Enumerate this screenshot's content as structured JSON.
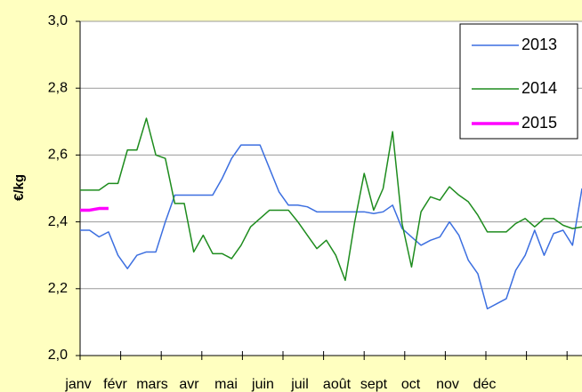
{
  "chart_data": {
    "type": "line",
    "y_label": "€/kg",
    "categories": [
      "janv",
      "févr",
      "mars",
      "avr",
      "mai",
      "juin",
      "juil",
      "août",
      "sept",
      "oct",
      "nov",
      "déc"
    ],
    "x": [
      0,
      1,
      2,
      3,
      4,
      5,
      6,
      7,
      8,
      9,
      10,
      11,
      12,
      13,
      14,
      15,
      16,
      17,
      18,
      19,
      20,
      21,
      22,
      23,
      24,
      25,
      26,
      27,
      28,
      29,
      30,
      31,
      32,
      33,
      34,
      35,
      36,
      37,
      38,
      39,
      40,
      41,
      42,
      43,
      44,
      45,
      46,
      47,
      48,
      49,
      50,
      51,
      52,
      53
    ],
    "xlim": [
      0,
      53
    ],
    "ylim": [
      2.0,
      3.0
    ],
    "yticks": [
      {
        "value": 2.0,
        "label": "2,0"
      },
      {
        "value": 2.2,
        "label": "2,2"
      },
      {
        "value": 2.4,
        "label": "2,4"
      },
      {
        "value": 2.6,
        "label": "2,6"
      },
      {
        "value": 2.8,
        "label": "2,8"
      },
      {
        "value": 3.0,
        "label": "3,0"
      }
    ],
    "grid": true,
    "legend": "top-right",
    "series": [
      {
        "name": "2013",
        "color": "#3c6fe0",
        "width": 1.5,
        "values": [
          2.375,
          2.375,
          2.355,
          2.37,
          2.3,
          2.26,
          2.3,
          2.31,
          2.31,
          2.4,
          2.48,
          2.48,
          2.48,
          2.48,
          2.48,
          2.53,
          2.59,
          2.63,
          2.63,
          2.63,
          2.56,
          2.49,
          2.45,
          2.45,
          2.445,
          2.43,
          2.43,
          2.43,
          2.43,
          2.43,
          2.43,
          2.425,
          2.43,
          2.45,
          2.38,
          2.355,
          2.33,
          2.345,
          2.355,
          2.4,
          2.36,
          2.285,
          2.245,
          2.14,
          2.155,
          2.17,
          2.255,
          2.3,
          2.375,
          2.3,
          2.365,
          2.375,
          2.33,
          2.5
        ]
      },
      {
        "name": "2014",
        "color": "#1e8c1e",
        "width": 1.5,
        "values": [
          2.495,
          2.495,
          2.495,
          2.515,
          2.515,
          2.615,
          2.615,
          2.71,
          2.6,
          2.59,
          2.455,
          2.455,
          2.31,
          2.36,
          2.305,
          2.305,
          2.29,
          2.33,
          2.385,
          2.41,
          2.435,
          2.435,
          2.435,
          2.4,
          2.36,
          2.32,
          2.345,
          2.3,
          2.225,
          2.4,
          2.545,
          2.435,
          2.5,
          2.67,
          2.395,
          2.265,
          2.43,
          2.475,
          2.465,
          2.505,
          2.48,
          2.46,
          2.42,
          2.37,
          2.37,
          2.37,
          2.395,
          2.41,
          2.385,
          2.41,
          2.41,
          2.39,
          2.38,
          2.385
        ]
      },
      {
        "name": "2015",
        "color": "#ff00ff",
        "width": 3.5,
        "values": [
          2.435,
          2.435,
          2.44,
          2.44,
          null,
          null,
          null,
          null,
          null,
          null,
          null,
          null,
          null,
          null,
          null,
          null,
          null,
          null,
          null,
          null,
          null,
          null,
          null,
          null,
          null,
          null,
          null,
          null,
          null,
          null,
          null,
          null,
          null,
          null,
          null,
          null,
          null,
          null,
          null,
          null,
          null,
          null,
          null,
          null,
          null,
          null,
          null,
          null,
          null,
          null,
          null,
          null,
          null,
          null
        ]
      }
    ]
  }
}
